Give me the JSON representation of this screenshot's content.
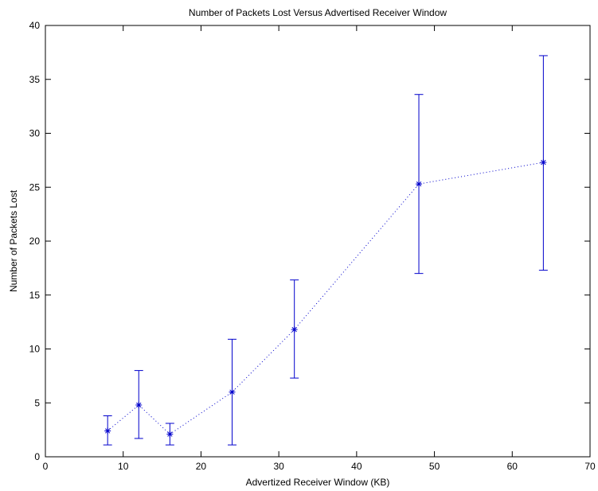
{
  "chart_data": {
    "type": "line",
    "title": "Number of Packets Lost Versus Advertised Receiver Window",
    "xlabel": "Advertized Receiver Window (KB)",
    "ylabel": "Number of Packets Lost",
    "xlim": [
      0,
      70
    ],
    "ylim": [
      0,
      40
    ],
    "xticks": [
      0,
      10,
      20,
      30,
      40,
      50,
      60,
      70
    ],
    "yticks": [
      0,
      5,
      10,
      15,
      20,
      25,
      30,
      35,
      40
    ],
    "grid": false,
    "legend": "none",
    "marker": "asterisk",
    "line_style": "dotted",
    "color": "#0000cc",
    "series": [
      {
        "x": [
          8,
          12,
          16,
          24,
          32,
          48,
          64
        ],
        "y": [
          2.4,
          4.8,
          2.1,
          6.0,
          11.8,
          25.3,
          27.3
        ],
        "err_low": [
          1.1,
          1.7,
          1.1,
          1.1,
          7.3,
          17.0,
          17.3
        ],
        "err_high": [
          3.8,
          8.0,
          3.1,
          10.9,
          16.4,
          33.6,
          37.2
        ]
      }
    ]
  }
}
